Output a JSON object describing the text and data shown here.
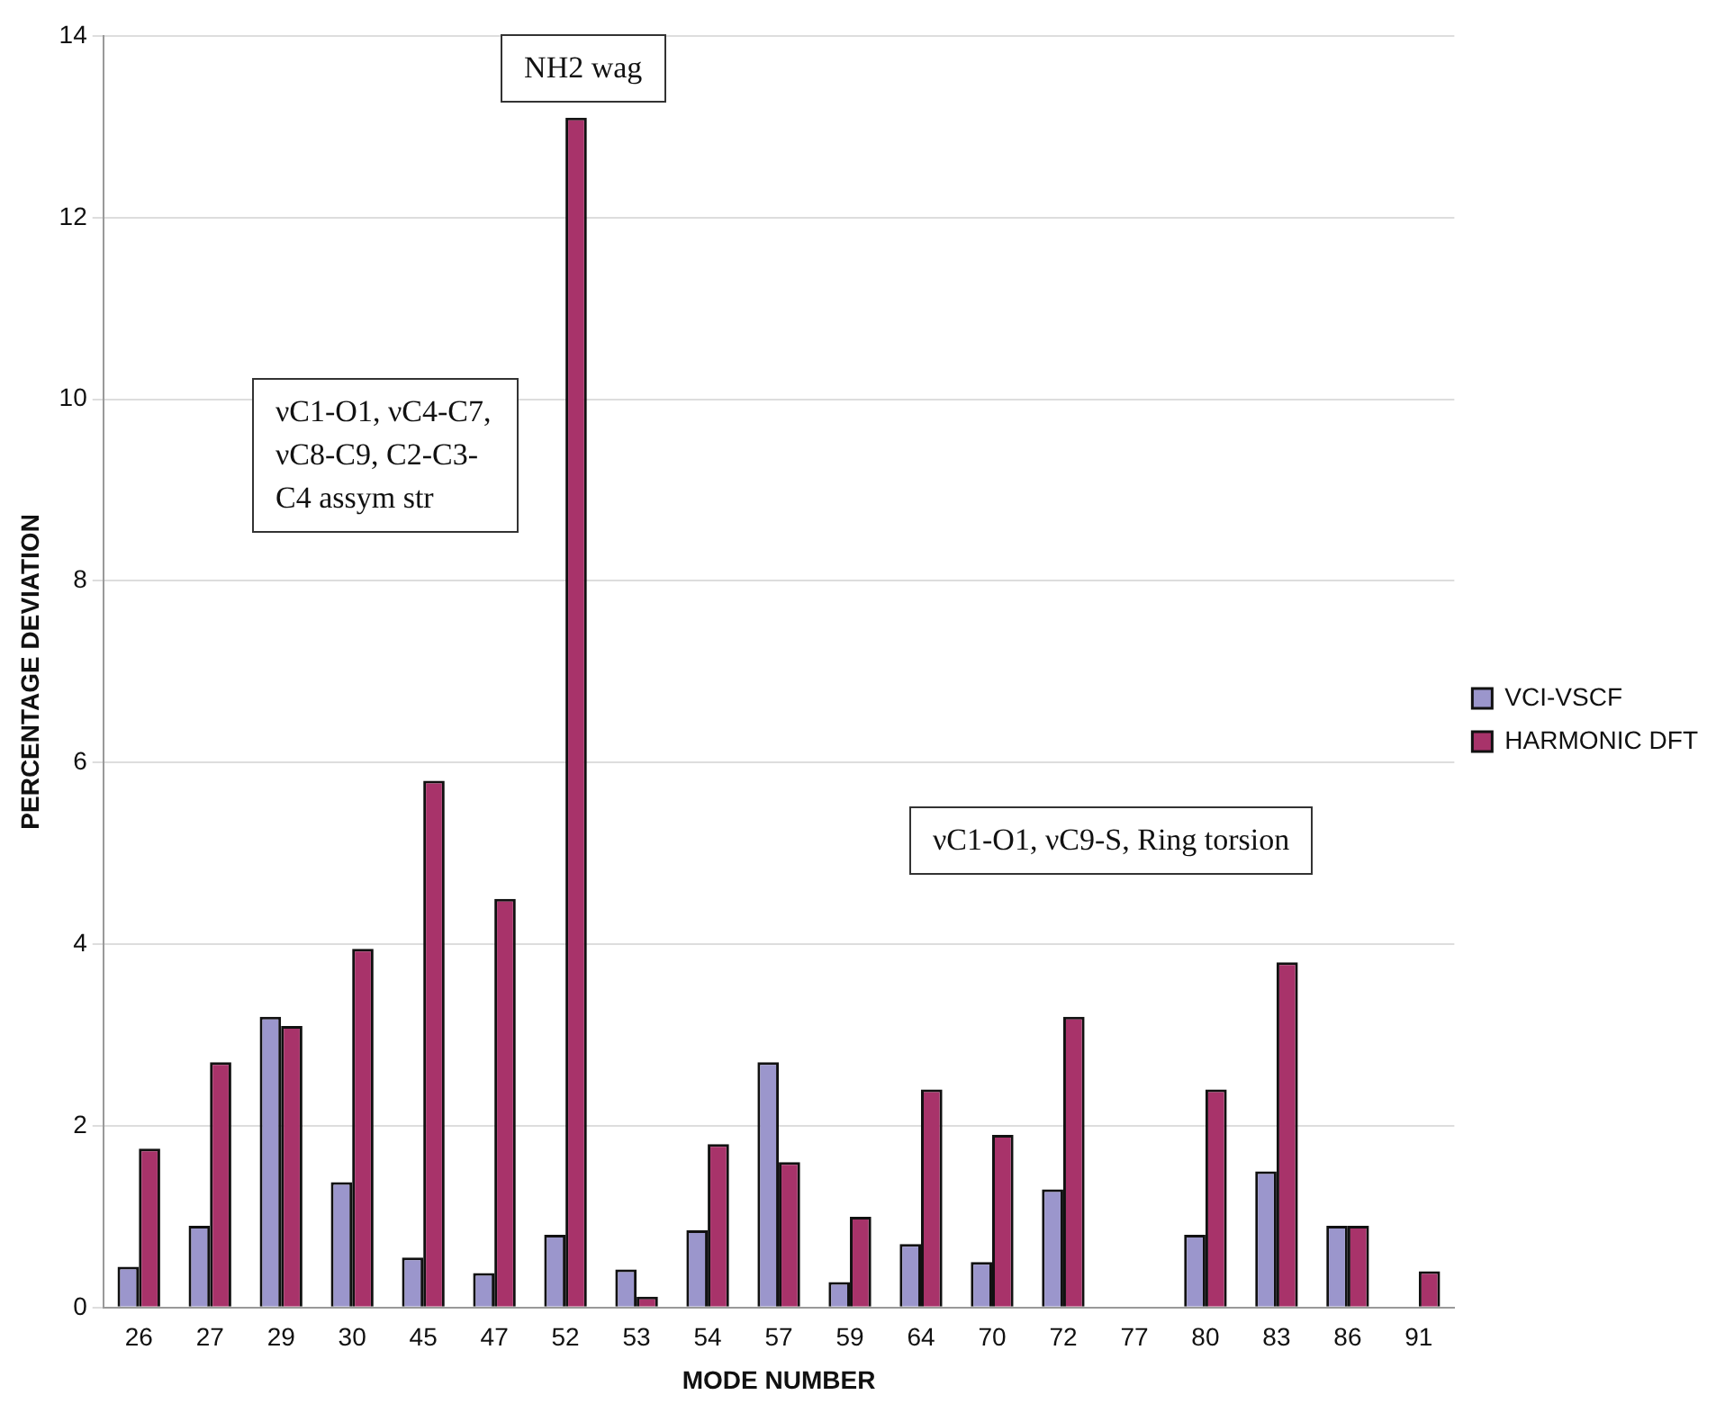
{
  "chart_data": {
    "type": "bar",
    "xlabel": "MODE NUMBER",
    "ylabel": "PERCENTAGE DEVIATION",
    "categories": [
      "26",
      "27",
      "29",
      "30",
      "45",
      "47",
      "52",
      "53",
      "54",
      "57",
      "59",
      "64",
      "70",
      "72",
      "77",
      "80",
      "83",
      "86",
      "91"
    ],
    "series": [
      {
        "name": "VCI-VSCF",
        "color": "#9b96cc",
        "values": [
          0.45,
          0.9,
          3.2,
          1.38,
          0.55,
          0.38,
          0.8,
          0.42,
          0.85,
          2.7,
          0.28,
          0.7,
          0.5,
          1.3,
          0,
          0.8,
          1.5,
          0.9,
          0
        ]
      },
      {
        "name": "HARMONIC DFT",
        "color": "#a8336a",
        "values": [
          1.75,
          2.7,
          3.1,
          3.95,
          5.8,
          4.5,
          13.1,
          0.12,
          1.8,
          1.6,
          1.0,
          2.4,
          1.9,
          3.2,
          0,
          2.4,
          3.8,
          0.9,
          0.4
        ]
      }
    ],
    "ylim": [
      0,
      14
    ],
    "yticks": [
      0,
      2,
      4,
      6,
      8,
      10,
      12,
      14
    ],
    "grid": "y",
    "legend": "right",
    "annotations": [
      {
        "text": "NH2 wag",
        "x": "52",
        "y": 13.1
      },
      "νC1-O1, νC4-C7, νC8-C9, C2-C3-C4 assym str",
      "νC1-O1, νC9-S, Ring torsion"
    ]
  }
}
